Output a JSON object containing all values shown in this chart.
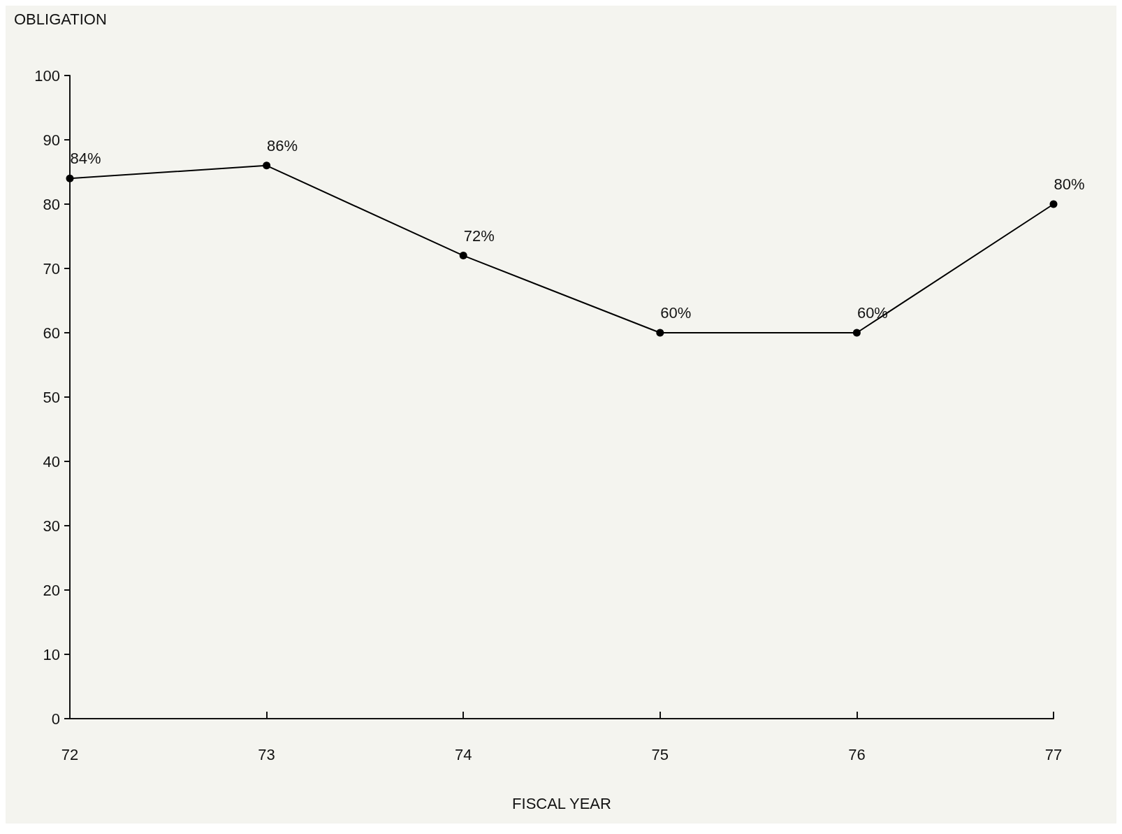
{
  "chart_data": {
    "type": "line",
    "xlabel": "FISCAL YEAR",
    "ylabel": "OBLIGATION",
    "categories": [
      "72",
      "73",
      "74",
      "75",
      "76",
      "77"
    ],
    "series": [
      {
        "color": "#000000",
        "values": [
          84,
          86,
          72,
          60,
          60,
          80
        ],
        "value_labels": [
          "84%",
          "86%",
          "72%",
          "60%",
          "60%",
          "80%"
        ]
      }
    ],
    "ylim": [
      0,
      100
    ],
    "yticks": [
      0,
      10,
      20,
      30,
      40,
      50,
      60,
      70,
      80,
      90,
      100
    ],
    "grid": false,
    "marker": "circle",
    "line_style": "solid"
  }
}
